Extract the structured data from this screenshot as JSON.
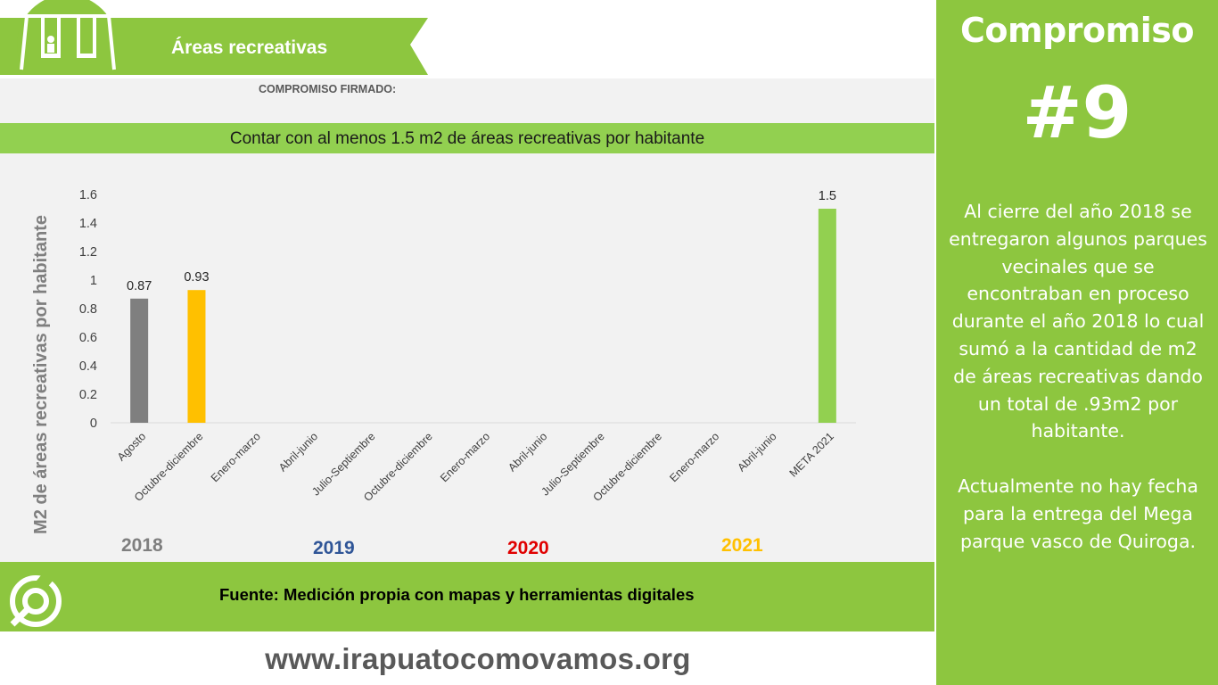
{
  "header": {
    "title": "Áreas recreativas",
    "subtitle": "COMPROMISO FIRMADO:",
    "icon": "swing-icon"
  },
  "goal": "Contar con al menos 1.5 m2 de áreas recreativas por habitante",
  "panel": {
    "title": "Compromiso",
    "number": "#9",
    "paragraph1": "Al cierre del año 2018 se entregaron algunos parques vecinales que se encontraban en proceso durante el año 2018 lo cual sumó a la cantidad de m2 de áreas recreativas dando un total de .93m2 por habitante.",
    "paragraph2": "Actualmente no hay fecha para la entrega del Mega parque vasco de Quiroga."
  },
  "chart_data": {
    "type": "bar",
    "ylabel": "M2 de áreas recreativas por habitante",
    "ylim": [
      0,
      1.6
    ],
    "yticks": [
      "0",
      "0.2",
      "0.4",
      "0.6",
      "0.8",
      "1",
      "1.2",
      "1.4",
      "1.6"
    ],
    "categories": [
      "Agosto",
      "Octubre-diciembre",
      "Enero-marzo",
      "Abril-junio",
      "Julio-Septiembre",
      "Octubre-diciembre",
      "Enero-marzo",
      "Abril-junio",
      "Julio-Septiembre",
      "Octubre-diciembre",
      "Enero-marzo",
      "Abril-junio",
      "META 2021"
    ],
    "values": [
      0.87,
      0.93,
      null,
      null,
      null,
      null,
      null,
      null,
      null,
      null,
      null,
      null,
      1.5
    ],
    "value_labels": [
      "0.87",
      "0.93",
      "",
      "",
      "",
      "",
      "",
      "",
      "",
      "",
      "",
      "",
      "1.5"
    ],
    "bar_colors": [
      "#7f7f7f",
      "#ffc000",
      "",
      "",
      "",
      "",
      "",
      "",
      "",
      "",
      "",
      "",
      "#92d050"
    ],
    "grid": false,
    "year_groups": [
      {
        "label": "2018",
        "color": "#7f7f7f"
      },
      {
        "label": "2019",
        "color": "#2f5597"
      },
      {
        "label": "2020",
        "color": "#e00000"
      },
      {
        "label": "2021",
        "color": "#ffc000"
      }
    ]
  },
  "footer": {
    "source": "Fuente: Medición propia con mapas y herramientas digitales",
    "logo": "irapuato-logo-icon",
    "url": "www.irapuatocomovamos.org"
  },
  "colors": {
    "brand_green": "#8dc63f",
    "goal_band": "#92d050"
  }
}
